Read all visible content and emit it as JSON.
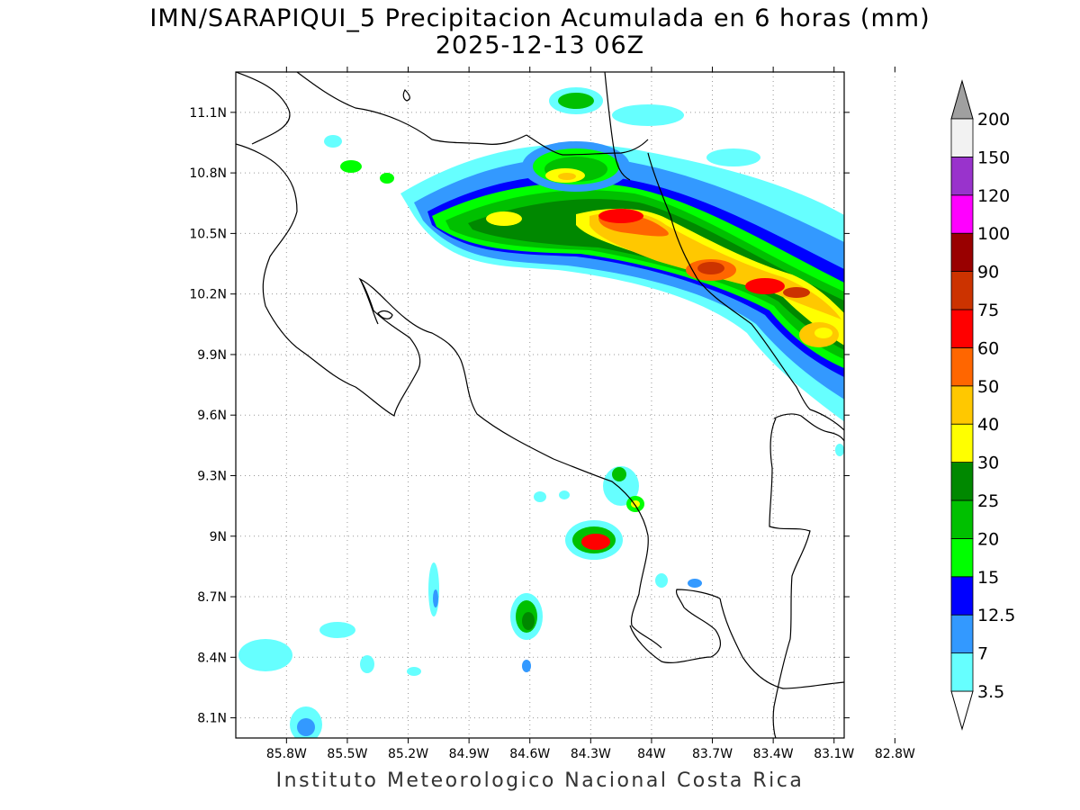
{
  "title": {
    "line1": "IMN/SARAPIQUI_5 Precipitacion Acumulada en 6 horas (mm)",
    "line2": "2025-12-13 06Z"
  },
  "credit": "Instituto Meteorologico Nacional Costa Rica",
  "map": {
    "lon_range": [
      -86.05,
      -83.05
    ],
    "lat_range": [
      8.0,
      11.3
    ],
    "lon_ticks": [
      "85.8W",
      "85.5W",
      "85.2W",
      "84.9W",
      "84.6W",
      "84.3W",
      "84W",
      "83.7W",
      "83.4W",
      "83.1W",
      "82.8W"
    ],
    "lat_ticks": [
      "8.1N",
      "8.4N",
      "8.7N",
      "9N",
      "9.3N",
      "9.6N",
      "9.9N",
      "10.2N",
      "10.5N",
      "10.8N",
      "11.1N"
    ],
    "grid": "dotted"
  },
  "colorbar": {
    "levels": [
      "3.5",
      "7",
      "12.5",
      "15",
      "20",
      "25",
      "30",
      "40",
      "50",
      "60",
      "75",
      "90",
      "100",
      "120",
      "150",
      "200"
    ],
    "colors": [
      "#66ffff",
      "#3399ff",
      "#0000ff",
      "#00ff00",
      "#00c000",
      "#008800",
      "#ffff00",
      "#ffc800",
      "#ff6600",
      "#ff0000",
      "#cc3300",
      "#990000",
      "#ff00ff",
      "#9933cc",
      "#f2f2f2"
    ],
    "below_color": "#ffffff",
    "above_color": "#a0a0a0"
  }
}
